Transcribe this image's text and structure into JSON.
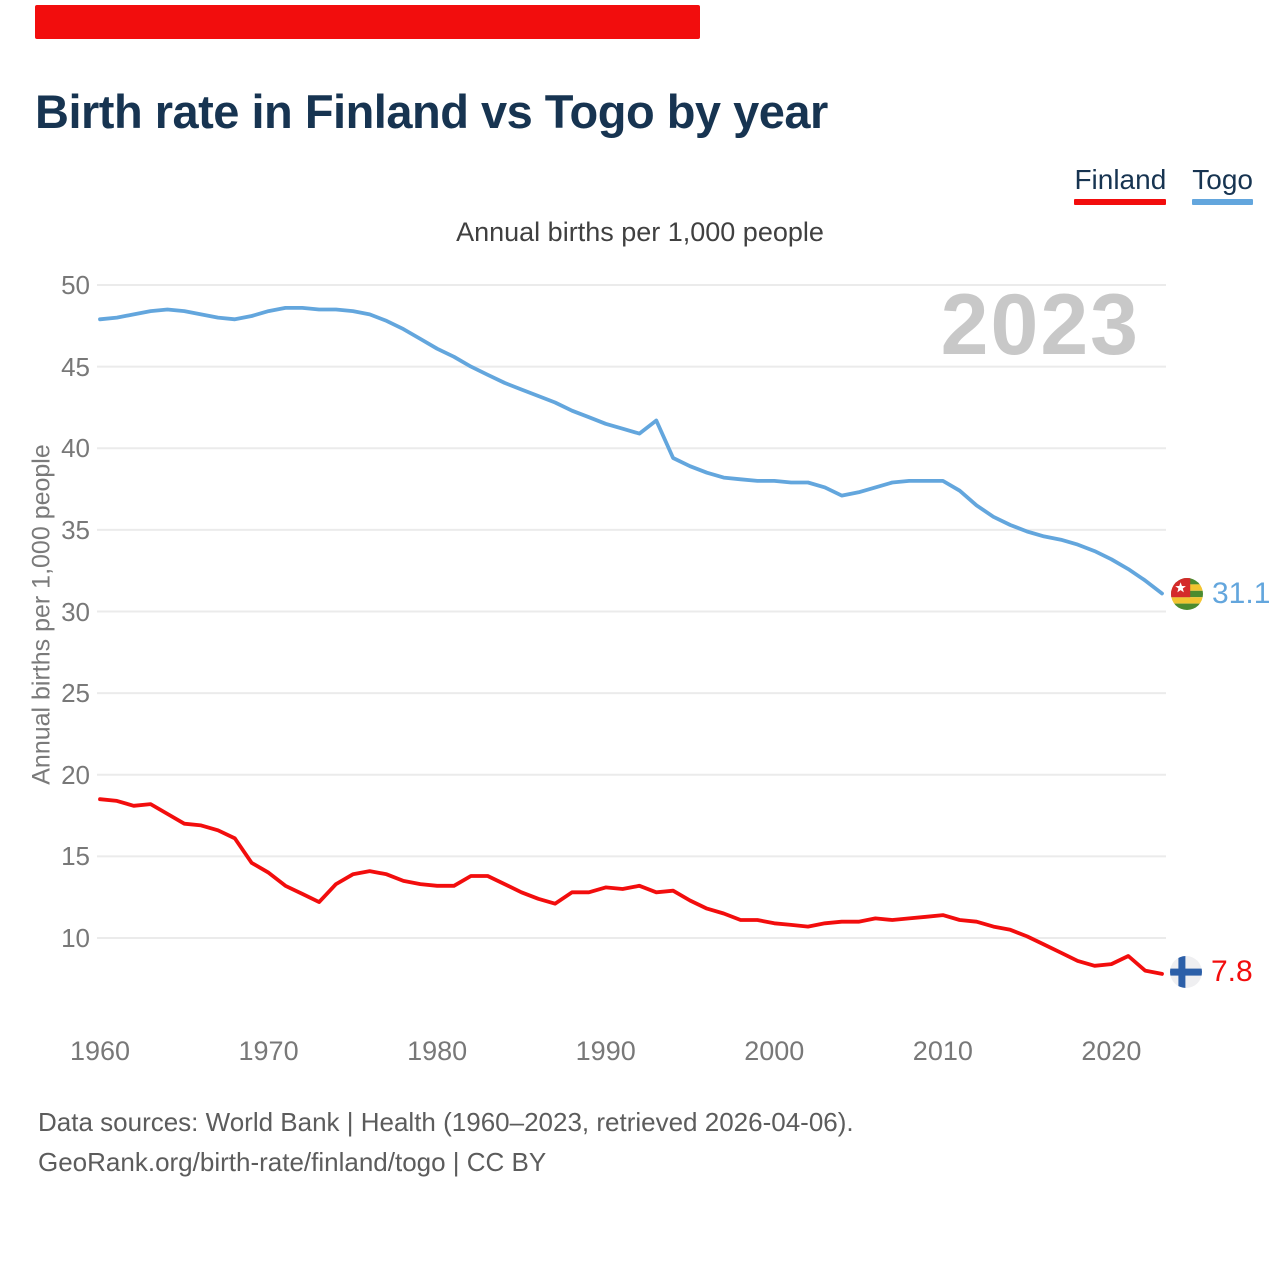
{
  "header": {
    "title": "Birth rate in Finland vs Togo by year",
    "accent_bar_color": "#f20d0d"
  },
  "chart_data": {
    "type": "line",
    "title": "Birth rate in Finland vs Togo by year",
    "subtitle": "Annual births per 1,000 people",
    "ylabel": "Annual births per 1,000 people",
    "watermark_year": "2023",
    "legend_position": "top-right",
    "grid": true,
    "grid_color": "#ebebeb",
    "xlim": [
      1960,
      2023
    ],
    "ylim": [
      7,
      50
    ],
    "x_ticks": [
      1960,
      1970,
      1980,
      1990,
      2000,
      2010,
      2020
    ],
    "y_ticks": [
      50,
      45,
      40,
      35,
      30,
      25,
      20,
      15,
      10
    ],
    "years": [
      1960,
      1961,
      1962,
      1963,
      1964,
      1965,
      1966,
      1967,
      1968,
      1969,
      1970,
      1971,
      1972,
      1973,
      1974,
      1975,
      1976,
      1977,
      1978,
      1979,
      1980,
      1981,
      1982,
      1983,
      1984,
      1985,
      1986,
      1987,
      1988,
      1989,
      1990,
      1991,
      1992,
      1993,
      1994,
      1995,
      1996,
      1997,
      1998,
      1999,
      2000,
      2001,
      2002,
      2003,
      2004,
      2005,
      2006,
      2007,
      2008,
      2009,
      2010,
      2011,
      2012,
      2013,
      2014,
      2015,
      2016,
      2017,
      2018,
      2019,
      2020,
      2021,
      2022,
      2023
    ],
    "series": [
      {
        "name": "Finland",
        "color": "#f20d0d",
        "end_label": "7.8",
        "flag": "finland-flag",
        "values": [
          18.5,
          18.4,
          18.1,
          18.2,
          17.6,
          17.0,
          16.9,
          16.6,
          16.1,
          14.6,
          14.0,
          13.2,
          12.7,
          12.2,
          13.3,
          13.9,
          14.1,
          13.9,
          13.5,
          13.3,
          13.2,
          13.2,
          13.8,
          13.8,
          13.3,
          12.8,
          12.4,
          12.1,
          12.8,
          12.8,
          13.1,
          13.0,
          13.2,
          12.8,
          12.9,
          12.3,
          11.8,
          11.5,
          11.1,
          11.1,
          10.9,
          10.8,
          10.7,
          10.9,
          11.0,
          11.0,
          11.2,
          11.1,
          11.2,
          11.3,
          11.4,
          11.1,
          11.0,
          10.7,
          10.5,
          10.1,
          9.6,
          9.1,
          8.6,
          8.3,
          8.4,
          8.9,
          8.0,
          7.8
        ]
      },
      {
        "name": "Togo",
        "color": "#63a6dd",
        "end_label": "31.1",
        "flag": "togo-flag",
        "values": [
          47.9,
          48.0,
          48.2,
          48.4,
          48.5,
          48.4,
          48.2,
          48.0,
          47.9,
          48.1,
          48.4,
          48.6,
          48.6,
          48.5,
          48.5,
          48.4,
          48.2,
          47.8,
          47.3,
          46.7,
          46.1,
          45.6,
          45.0,
          44.5,
          44.0,
          43.6,
          43.2,
          42.8,
          42.3,
          41.9,
          41.5,
          41.2,
          40.9,
          41.7,
          39.4,
          38.9,
          38.5,
          38.2,
          38.1,
          38.0,
          38.0,
          37.9,
          37.9,
          37.6,
          37.1,
          37.3,
          37.6,
          37.9,
          38.0,
          38.0,
          38.0,
          37.4,
          36.5,
          35.8,
          35.3,
          34.9,
          34.6,
          34.4,
          34.1,
          33.7,
          33.2,
          32.6,
          31.9,
          31.1
        ]
      }
    ]
  },
  "footer": {
    "line1": "Data sources: World Bank | Health (1960–2023, retrieved 2026-04-06).",
    "line2": "GeoRank.org/birth-rate/finland/togo | CC BY"
  }
}
